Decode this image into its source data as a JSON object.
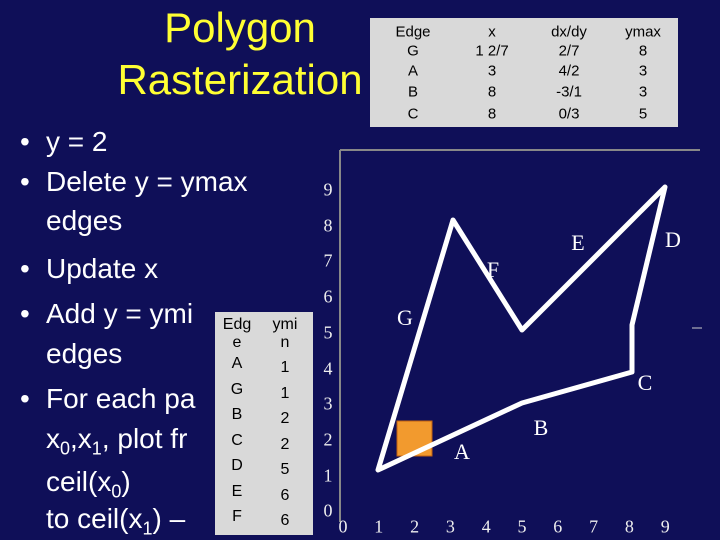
{
  "title": [
    "Polygon",
    "Rasterization"
  ],
  "bullets": [
    {
      "lines": [
        [
          "y = 2"
        ]
      ]
    },
    {
      "lines": [
        [
          "Delete y = ymax"
        ],
        [
          "edges"
        ]
      ]
    },
    {
      "lines": [
        [
          "Update x"
        ]
      ]
    },
    {
      "lines": [
        [
          "Add y = ymi"
        ],
        [
          "edges"
        ]
      ]
    },
    {
      "lines": [
        [
          "For each pa"
        ],
        [
          "x",
          {
            "sub": "0"
          },
          ",x",
          {
            "sub": "1"
          },
          ", plot fr"
        ],
        [
          "ceil(x",
          {
            "sub": "0"
          },
          ")"
        ],
        [
          "to ceil(x",
          {
            "sub": "1"
          },
          ") –"
        ]
      ]
    }
  ],
  "active_edge_table": {
    "headers": [
      "Edge",
      "x",
      "dx/dy",
      "ymax"
    ],
    "rows": [
      [
        "G",
        "1 2/7",
        "2/7",
        "8"
      ],
      [
        "A",
        "3",
        "4/2",
        "3"
      ],
      [
        "B",
        "8",
        "-3/1",
        "3"
      ],
      [
        "C",
        "8",
        "0/3",
        "5"
      ]
    ]
  },
  "edge_table": {
    "headers": [
      [
        "Edg",
        "e"
      ],
      [
        "ymi",
        "n"
      ]
    ],
    "rows": [
      [
        "A",
        "1"
      ],
      [
        "G",
        "1"
      ],
      [
        "B",
        "2"
      ],
      [
        "C",
        "2"
      ],
      [
        "D",
        "5"
      ],
      [
        "E",
        "6"
      ],
      [
        "F",
        "6"
      ]
    ]
  },
  "plot": {
    "y_labels": [
      "9",
      "8",
      "7",
      "6",
      "5",
      "4",
      "3",
      "2",
      "1",
      "0"
    ],
    "x_labels": [
      "0",
      "1",
      "2",
      "3",
      "4",
      "5",
      "6",
      "7",
      "8",
      "9"
    ],
    "edge_labels": [
      "G",
      "F",
      "E",
      "D",
      "C",
      "B",
      "A"
    ]
  }
}
